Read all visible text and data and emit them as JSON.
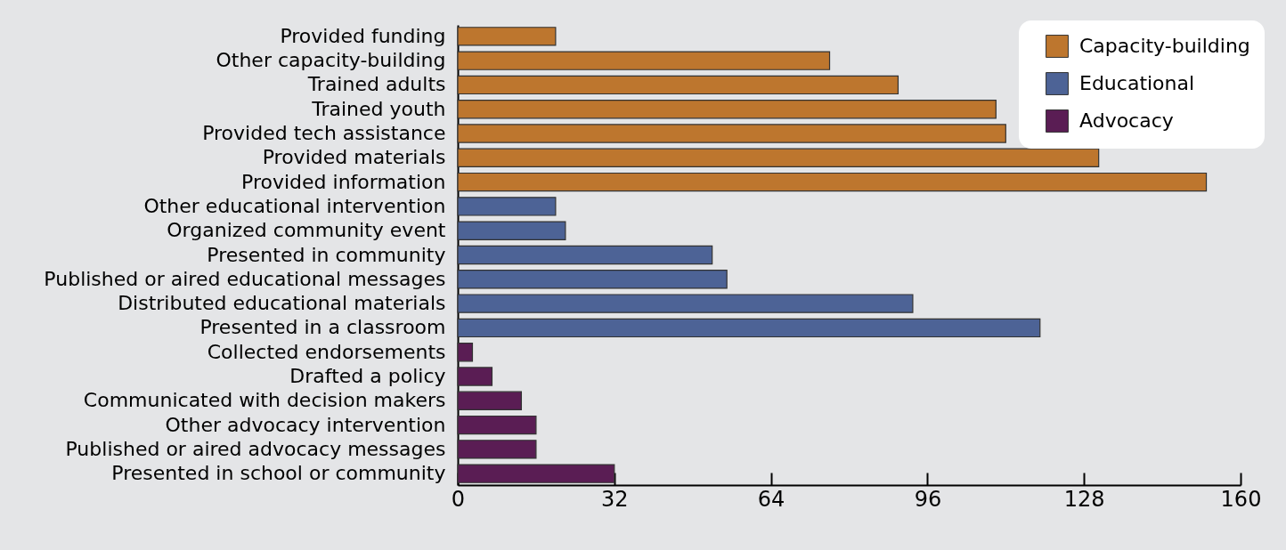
{
  "chart_data": {
    "type": "bar",
    "orientation": "horizontal",
    "categories": [
      "Provided funding",
      "Other capacity-building",
      "Trained adults",
      "Trained youth",
      "Provided tech assistance",
      "Provided materials",
      "Provided information",
      "Other educational intervention",
      "Organized community event",
      "Presented in community",
      "Published or aired educational messages",
      "Distributed educational materials",
      "Presented in a classroom",
      "Collected endorsements",
      "Drafted a policy",
      "Communicated with decision makers",
      "Other advocacy intervention",
      "Published or aired advocacy messages",
      "Presented in school or community"
    ],
    "series": [
      {
        "name": "Capacity-building",
        "color": "#bd762e",
        "values": [
          20,
          76,
          90,
          110,
          112,
          131,
          153,
          null,
          null,
          null,
          null,
          null,
          null,
          null,
          null,
          null,
          null,
          null,
          null
        ]
      },
      {
        "name": "Educational",
        "color": "#4d6396",
        "values": [
          null,
          null,
          null,
          null,
          null,
          null,
          null,
          20,
          22,
          52,
          55,
          93,
          119,
          null,
          null,
          null,
          null,
          null,
          null
        ]
      },
      {
        "name": "Advocacy",
        "color": "#5a1d54",
        "values": [
          null,
          null,
          null,
          null,
          null,
          null,
          null,
          null,
          null,
          null,
          null,
          null,
          null,
          3,
          7,
          13,
          16,
          16,
          32
        ]
      }
    ],
    "xlim": [
      0,
      160
    ],
    "xticks": [
      0,
      32,
      64,
      96,
      128,
      160
    ],
    "grid": false,
    "legend": "top right"
  }
}
